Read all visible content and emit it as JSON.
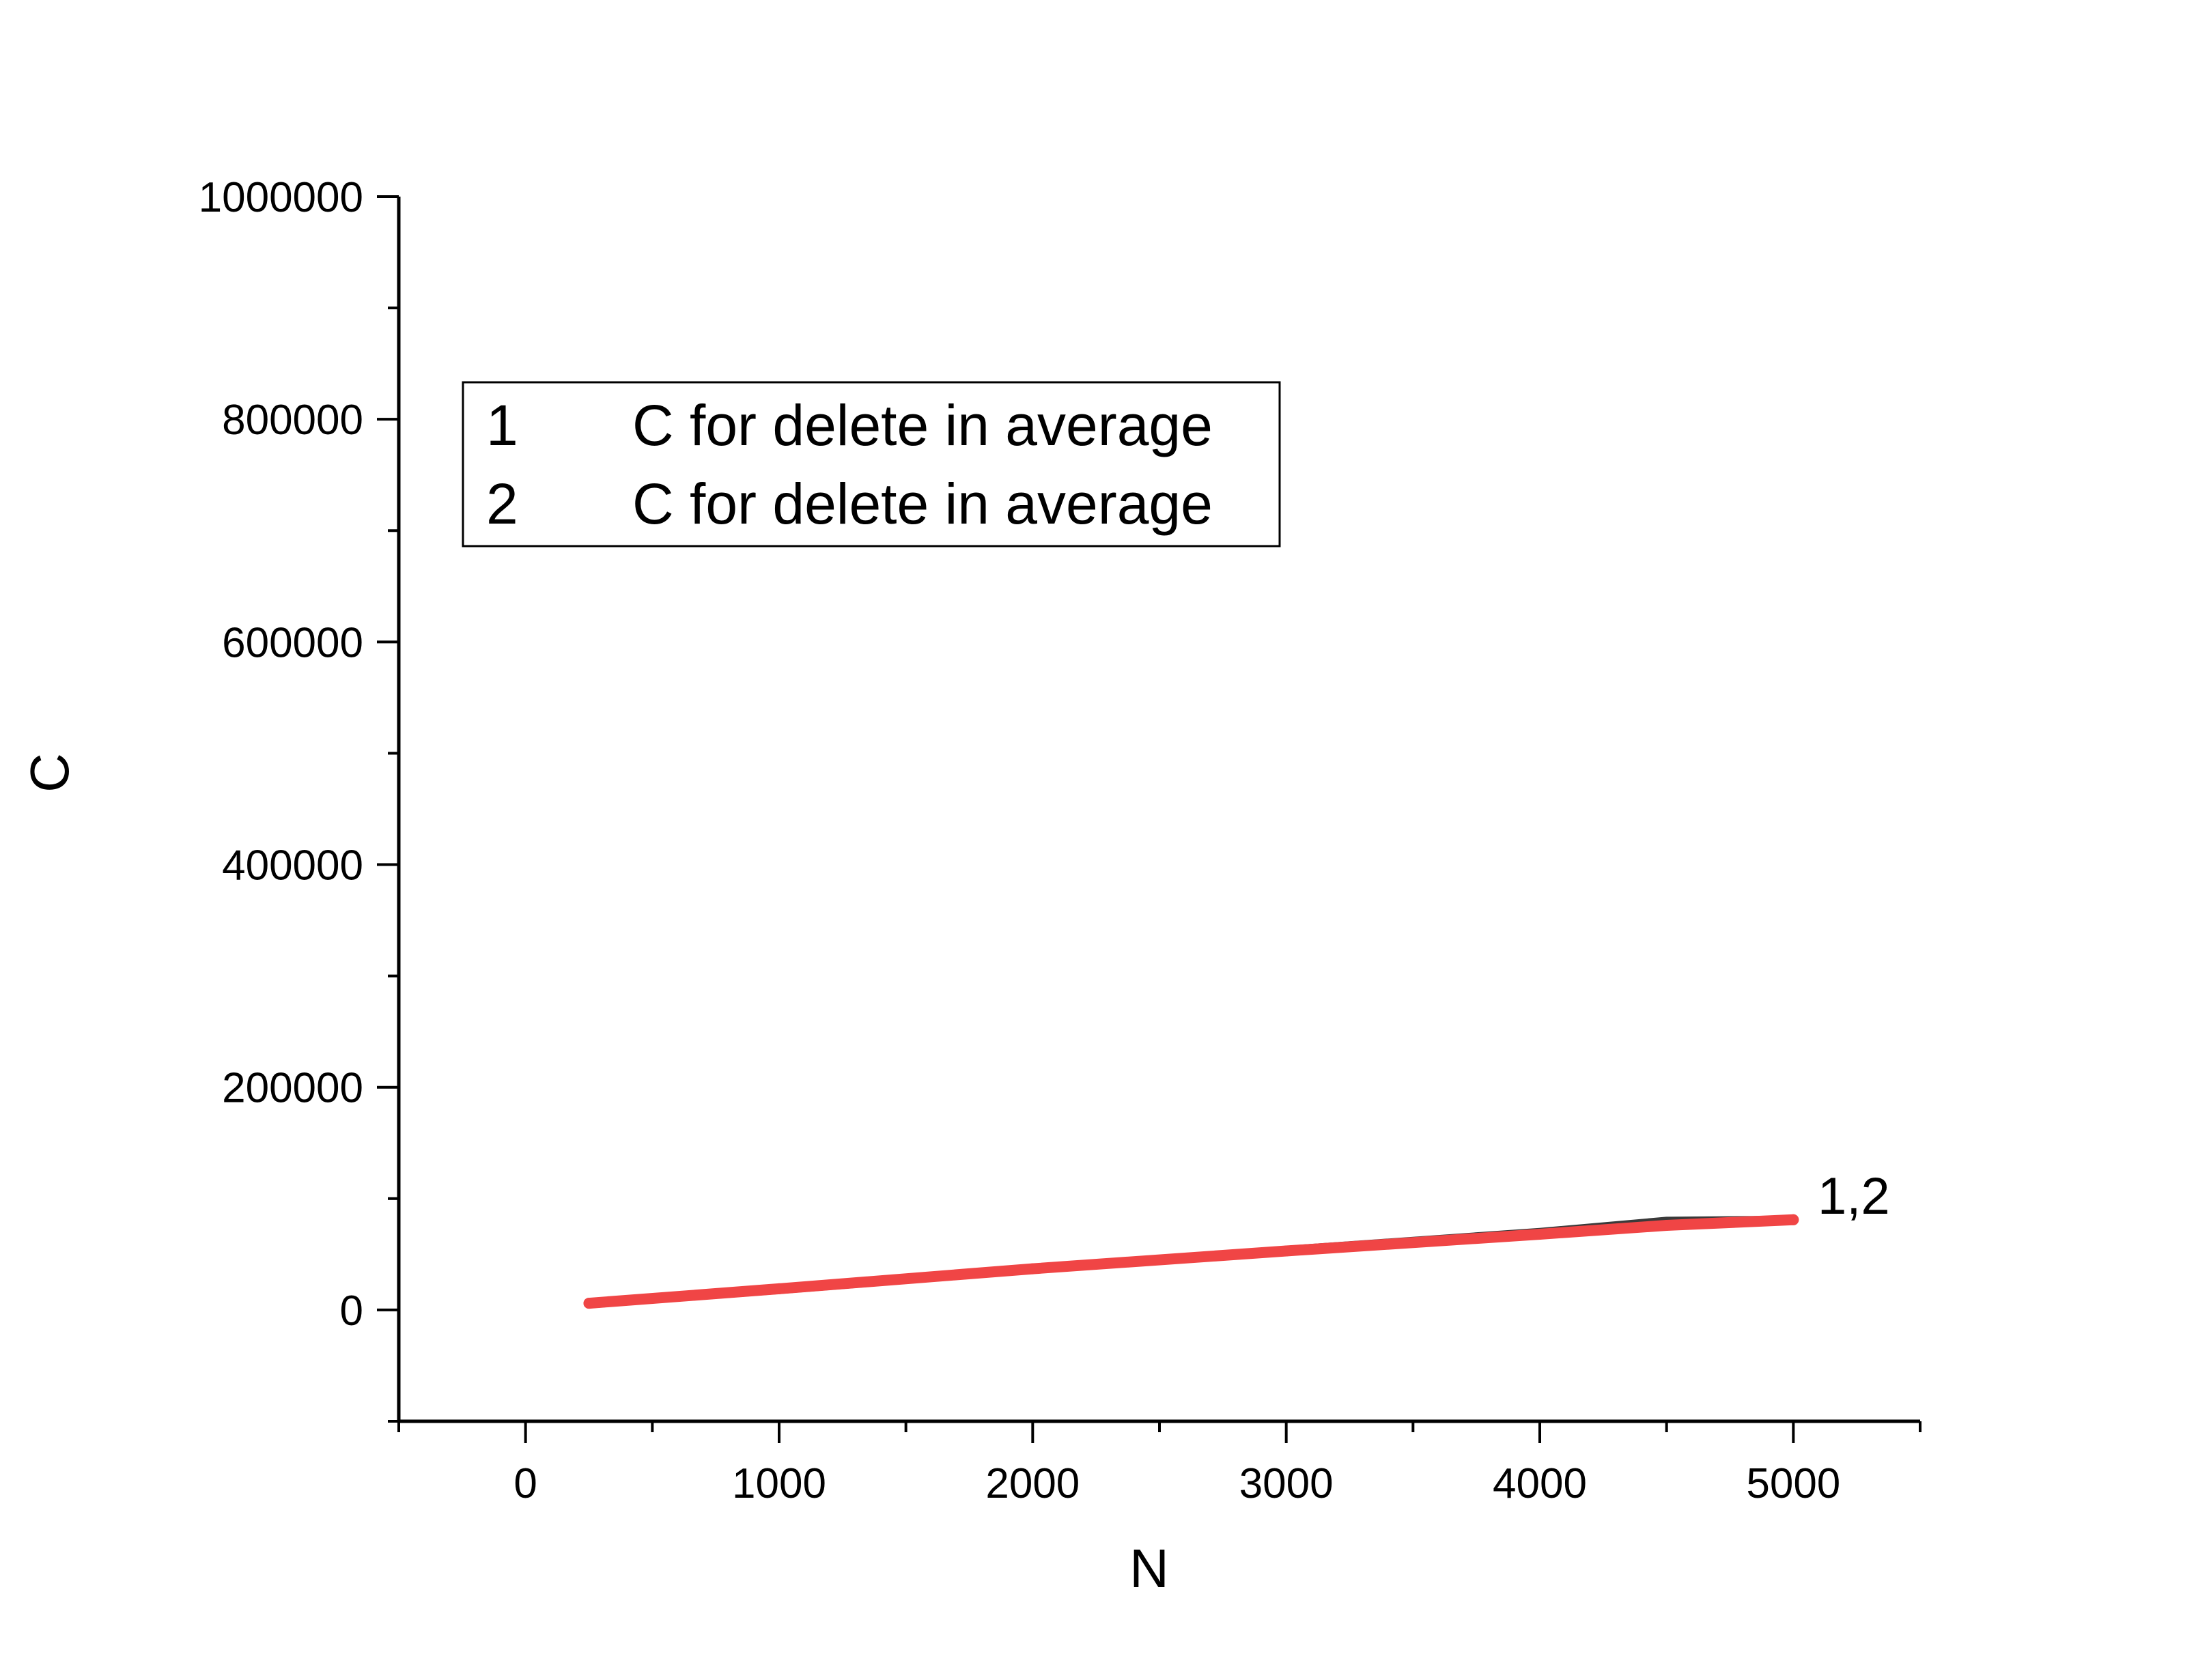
{
  "chart_data": {
    "type": "line",
    "title": "",
    "xlabel": "N",
    "ylabel": "C",
    "xlim": [
      -500,
      5500
    ],
    "ylim": [
      -100000,
      1000000
    ],
    "x_ticks": [
      0,
      1000,
      2000,
      3000,
      4000,
      5000
    ],
    "y_ticks": [
      0,
      200000,
      400000,
      600000,
      800000,
      1000000
    ],
    "grid": false,
    "legend": {
      "placement": "top-left",
      "entries": [
        {
          "index": "1",
          "label": "C for delete in average"
        },
        {
          "index": "2",
          "label": "C for delete in average"
        }
      ]
    },
    "annotation": "1,2",
    "series": [
      {
        "index": "1",
        "color": "#3a3a3a",
        "x": [
          250,
          1000,
          2000,
          3000,
          4000,
          4500,
          5000
        ],
        "y": [
          5000,
          18000,
          36000,
          54000,
          70000,
          80000,
          81000
        ]
      },
      {
        "index": "2",
        "color": "#f04545",
        "x": [
          250,
          1000,
          2000,
          3000,
          4000,
          4500,
          5000
        ],
        "y": [
          6000,
          19000,
          37000,
          53000,
          68000,
          76000,
          81000
        ]
      }
    ]
  }
}
